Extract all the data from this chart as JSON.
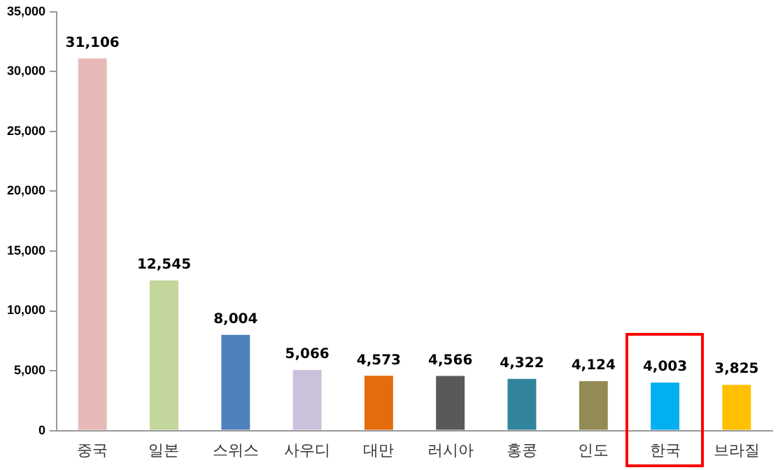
{
  "chart_data": {
    "type": "bar",
    "categories": [
      "중국",
      "일본",
      "스위스",
      "사우디",
      "대만",
      "러시아",
      "홍콩",
      "인도",
      "한국",
      "브라질"
    ],
    "values": [
      31106,
      12545,
      8004,
      5066,
      4573,
      4566,
      4322,
      4124,
      4003,
      3825
    ],
    "value_labels": [
      "31,106",
      "12,545",
      "8,004",
      "5,066",
      "4,573",
      "4,566",
      "4,322",
      "4,124",
      "4,003",
      "3,825"
    ],
    "colors": [
      "#e6b9b8",
      "#c3d69b",
      "#4f81bd",
      "#ccc1da",
      "#e46c0a",
      "#595959",
      "#31849b",
      "#948a54",
      "#00b0f0",
      "#ffc000"
    ],
    "ylim": [
      0,
      35000
    ],
    "yticks": [
      0,
      {
        "value": 5000,
        "label": "5,000"
      },
      {
        "value": 10000,
        "label": "10,000"
      },
      {
        "value": 15000,
        "label": "15,000"
      },
      {
        "value": 20000,
        "label": "20,000"
      },
      {
        "value": 25000,
        "label": "25,000"
      },
      {
        "value": 30000,
        "label": "30,000"
      },
      {
        "value": 35000,
        "label": "35,000"
      }
    ],
    "grid": false,
    "legend": false
  }
}
